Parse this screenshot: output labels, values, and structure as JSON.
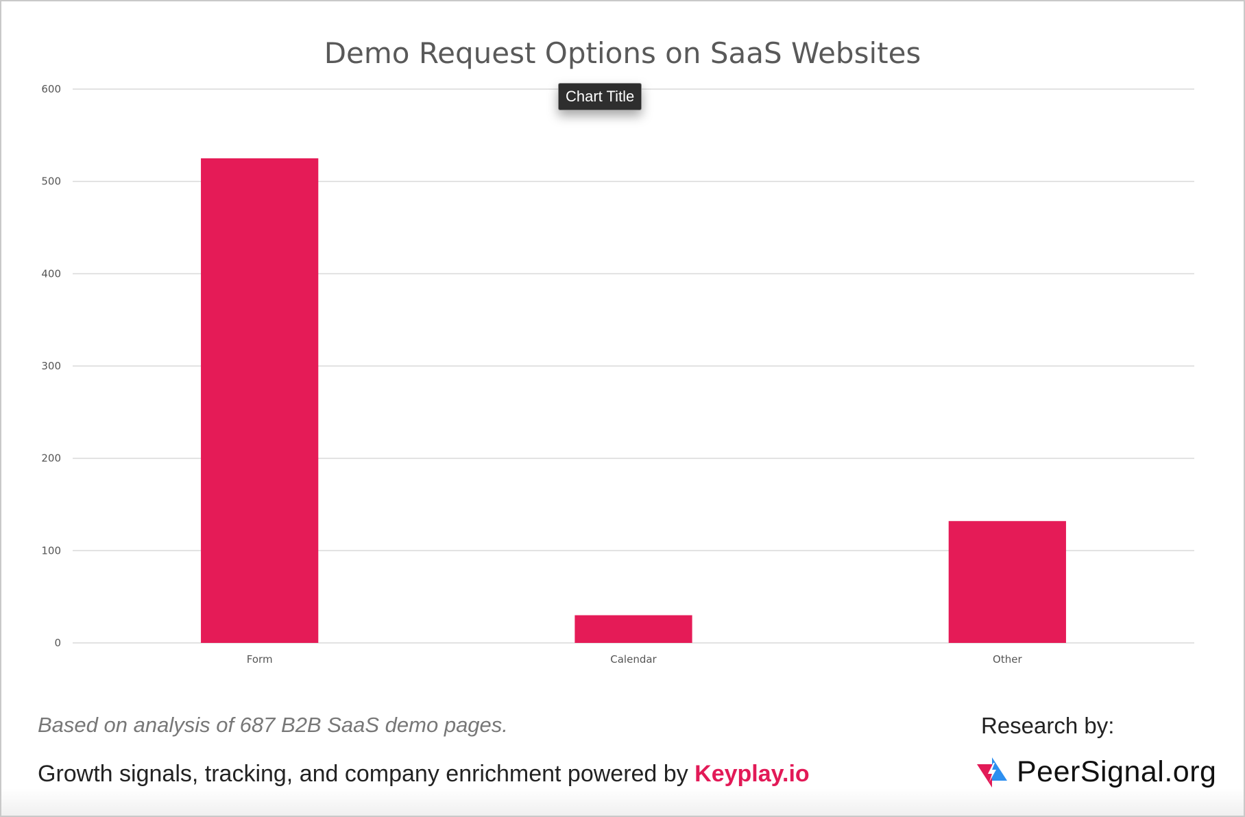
{
  "chart_data": {
    "type": "bar",
    "title": "Demo Request Options on SaaS Websites",
    "categories": [
      "Form",
      "Calendar",
      "Other"
    ],
    "values": [
      525,
      30,
      132
    ],
    "ylim": [
      0,
      600
    ],
    "yticks": [
      0,
      100,
      200,
      300,
      400,
      500,
      600
    ],
    "grid": true,
    "bar_color": "#e51b57"
  },
  "tooltip": {
    "text": "Chart Title"
  },
  "footer": {
    "note": "Based on analysis of 687 B2B SaaS demo pages.",
    "powered_prefix": "Growth signals, tracking, and company enrichment powered by ",
    "powered_brand": "Keyplay.io",
    "research_label": "Research by:",
    "research_org": "PeerSignal.org"
  },
  "colors": {
    "accent": "#e21a57",
    "logo_blue": "#2d8ff0"
  },
  "icons": {
    "logo": "peersignal-logo-icon"
  }
}
